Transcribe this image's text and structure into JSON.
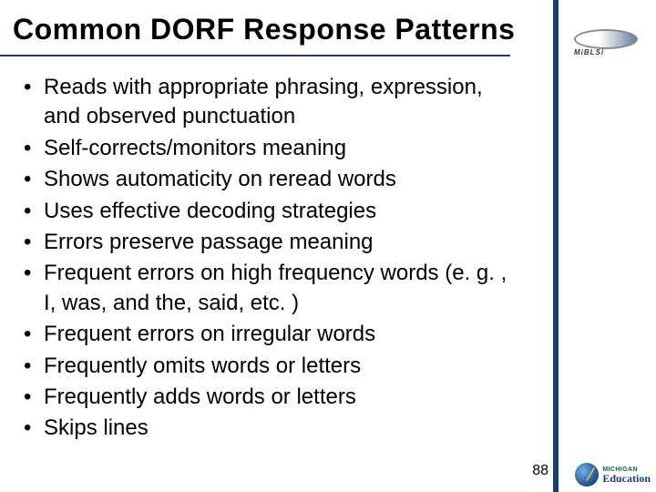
{
  "title": "Common DORF Response Patterns",
  "bullets": [
    "Reads with appropriate phrasing, expression, and observed punctuation",
    "Self-corrects/monitors meaning",
    "Shows automaticity on reread words",
    "Uses effective decoding strategies",
    "Errors preserve passage meaning",
    "Frequent errors on high frequency words (e. g. , I, was, and the, said, etc. )",
    "Frequent errors on irregular words",
    "Frequently omits words or letters",
    "Frequently adds words or letters",
    "Skips lines"
  ],
  "page_number": "88",
  "logo_top_text": "MiBLSi",
  "logo_bottom_state": "MICHIGAN",
  "logo_bottom_word": "Education",
  "colors": {
    "accent": "#1a3c7a",
    "text": "#000000",
    "background": "#ffffff"
  },
  "fontsize": {
    "title": 32,
    "bullet": 24,
    "pagenum": 16
  }
}
